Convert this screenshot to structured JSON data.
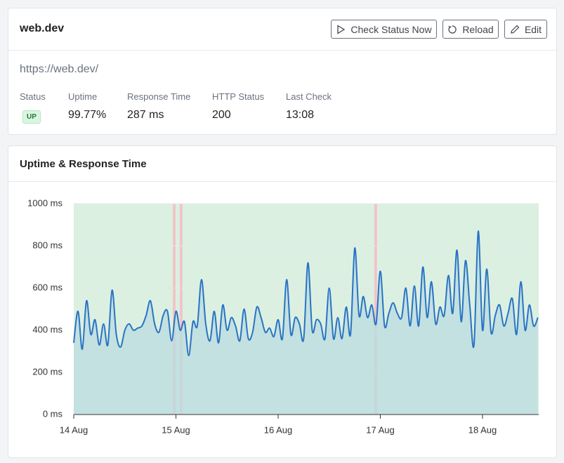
{
  "header": {
    "title": "web.dev",
    "buttons": [
      "Check Status Now",
      "Reload",
      "Edit"
    ]
  },
  "url": "https://web.dev/",
  "stats": [
    {
      "label": "Status",
      "value": "UP"
    },
    {
      "label": "Uptime",
      "value": "99.77%"
    },
    {
      "label": "Response Time",
      "value": "287 ms"
    },
    {
      "label": "HTTP Status",
      "value": "200"
    },
    {
      "label": "Last Check",
      "value": "13:08"
    }
  ],
  "chart_card": {
    "title": "Uptime & Response Time"
  },
  "chart_data": {
    "type": "line",
    "color": "#2a73c4",
    "area_color": "#b9dcdf",
    "background_color": "#dcf0e2",
    "downtime_color": "#f2c4c6",
    "x": [
      0,
      1,
      2,
      3,
      4,
      5,
      6,
      7,
      8,
      9,
      10,
      11,
      12,
      13,
      14,
      15,
      16,
      17,
      18,
      19,
      20,
      21,
      22,
      23,
      24,
      25,
      26,
      27,
      28,
      29,
      30,
      31,
      32,
      33,
      34,
      35,
      36,
      37,
      38,
      39,
      40,
      41,
      42,
      43,
      44,
      45,
      46,
      47,
      48,
      49,
      50,
      51,
      52,
      53,
      54,
      55,
      56,
      57,
      58,
      59,
      60,
      61,
      62,
      63,
      64,
      65,
      66,
      67,
      68,
      69,
      70,
      71,
      72,
      73,
      74,
      75,
      76,
      77,
      78,
      79,
      80,
      81,
      82,
      83,
      84,
      85,
      86,
      87,
      88,
      89,
      90,
      91,
      92,
      93,
      94,
      95,
      96,
      97,
      98,
      99,
      100,
      101,
      102,
      103,
      104,
      105,
      106,
      107,
      108,
      109
    ],
    "values": [
      340,
      490,
      310,
      540,
      380,
      450,
      330,
      430,
      330,
      590,
      380,
      320,
      400,
      430,
      400,
      410,
      420,
      470,
      540,
      430,
      390,
      470,
      490,
      350,
      490,
      400,
      440,
      280,
      440,
      420,
      640,
      430,
      350,
      490,
      340,
      520,
      400,
      460,
      420,
      350,
      500,
      360,
      390,
      510,
      460,
      390,
      410,
      370,
      450,
      360,
      640,
      380,
      460,
      430,
      360,
      720,
      400,
      450,
      430,
      360,
      600,
      360,
      460,
      360,
      510,
      380,
      790,
      470,
      560,
      460,
      520,
      430,
      680,
      420,
      480,
      530,
      480,
      460,
      600,
      420,
      610,
      420,
      700,
      460,
      630,
      430,
      510,
      470,
      660,
      480,
      780,
      440,
      730,
      520,
      330,
      870,
      400,
      690,
      390,
      470,
      520,
      420,
      480,
      550,
      380,
      630,
      400,
      520,
      420,
      460
    ],
    "downtime_x": [
      23.6,
      25.2,
      70.9
    ],
    "xlim": [
      0,
      109.2
    ],
    "xticks": [
      {
        "value": 0,
        "label": "14 Aug"
      },
      {
        "value": 24,
        "label": "15 Aug"
      },
      {
        "value": 48,
        "label": "16 Aug"
      },
      {
        "value": 72,
        "label": "17 Aug"
      },
      {
        "value": 96,
        "label": "18 Aug"
      }
    ],
    "ylim": [
      0,
      1000
    ],
    "yticks": [
      {
        "value": 0,
        "label": "0 ms"
      },
      {
        "value": 200,
        "label": "200 ms"
      },
      {
        "value": 400,
        "label": "400 ms"
      },
      {
        "value": 600,
        "label": "600 ms"
      },
      {
        "value": 800,
        "label": "800 ms"
      },
      {
        "value": 1000,
        "label": "1000 ms"
      }
    ],
    "grid": true
  }
}
